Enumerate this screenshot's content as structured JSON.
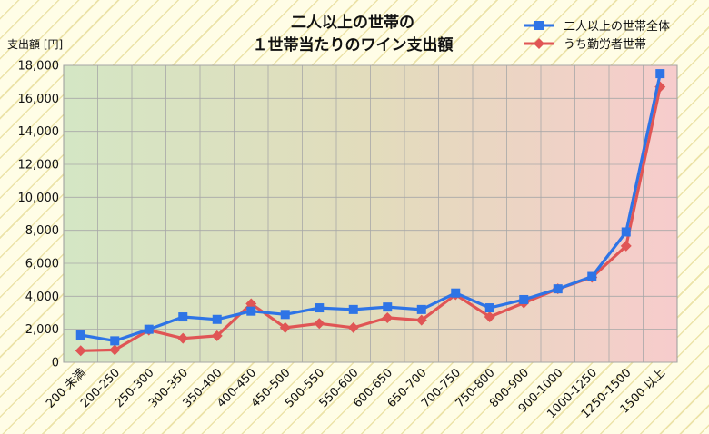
{
  "chart_data": {
    "type": "line",
    "title_lines": [
      "二人以上の世帯の",
      "１世帯当たりのワイン支出額"
    ],
    "ylabel": "支出額 [円]",
    "xlabel": "",
    "ylim": [
      0,
      18000
    ],
    "y_ticks": [
      "0",
      "2,000",
      "4,000",
      "6,000",
      "8,000",
      "10,000",
      "12,000",
      "14,000",
      "16,000",
      "18,000"
    ],
    "grid": true,
    "legend_position": "top-right",
    "categories": [
      "200 未満",
      "200-250",
      "250-300",
      "300-350",
      "350-400",
      "400-450",
      "450-500",
      "500-550",
      "550-600",
      "600-650",
      "650-700",
      "700-750",
      "750-800",
      "800-900",
      "900-1000",
      "1000-1250",
      "1250-1500",
      "1500 以上"
    ],
    "series": [
      {
        "name": "二人以上の世帯全体",
        "color": "#2e74e6",
        "marker": "square",
        "values": [
          1650,
          1300,
          2000,
          2750,
          2600,
          3100,
          2900,
          3300,
          3200,
          3350,
          3200,
          4200,
          3300,
          3800,
          4450,
          5200,
          7900,
          17500
        ]
      },
      {
        "name": "うち勤労者世帯",
        "color": "#e05555",
        "marker": "diamond",
        "values": [
          700,
          750,
          1950,
          1450,
          1600,
          3550,
          2100,
          2350,
          2100,
          2700,
          2550,
          4100,
          2750,
          3600,
          4450,
          5150,
          7050,
          16700
        ]
      }
    ],
    "background_gradient": [
      "#d4e6c4",
      "#f7cccc"
    ]
  }
}
